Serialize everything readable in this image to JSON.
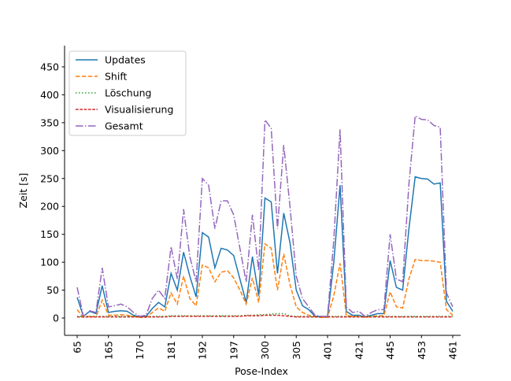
{
  "chart_data": {
    "type": "line",
    "x_label": "Pose-Index",
    "y_label": "Zeit [s]",
    "categories": [
      "65",
      null,
      null,
      null,
      null,
      "165",
      null,
      null,
      null,
      null,
      "170",
      null,
      null,
      null,
      null,
      "181",
      null,
      null,
      null,
      null,
      "192",
      null,
      null,
      null,
      null,
      "197",
      null,
      null,
      null,
      null,
      "300",
      null,
      null,
      null,
      null,
      "305",
      null,
      null,
      null,
      null,
      "401",
      null,
      null,
      null,
      null,
      "421",
      null,
      null,
      null,
      null,
      "445",
      null,
      null,
      null,
      null,
      "453",
      null,
      null,
      null,
      null,
      "461"
    ],
    "ylim": [
      -31,
      488
    ],
    "yticks": [
      0,
      50,
      100,
      150,
      200,
      250,
      300,
      350,
      400,
      450
    ],
    "legend": "upper left",
    "series": [
      {
        "name": "Updates",
        "color": "#1f77b4",
        "style": "solid",
        "values": [
          37,
          3,
          12,
          8,
          58,
          10,
          12,
          13,
          12,
          5,
          2,
          3,
          17,
          28,
          20,
          80,
          50,
          118,
          75,
          38,
          153,
          145,
          90,
          125,
          122,
          112,
          70,
          28,
          110,
          40,
          215,
          208,
          80,
          188,
          135,
          50,
          22,
          15,
          3,
          2,
          2,
          100,
          238,
          12,
          5,
          5,
          2,
          5,
          8,
          8,
          103,
          55,
          50,
          160,
          253,
          250,
          249,
          240,
          242,
          30,
          12
        ]
      },
      {
        "name": "Shift",
        "color": "#ff7f0e",
        "style": "dashed",
        "values": [
          15,
          1,
          3,
          2,
          32,
          5,
          5,
          6,
          5,
          3,
          1,
          1,
          10,
          18,
          12,
          45,
          25,
          75,
          35,
          22,
          95,
          90,
          65,
          82,
          85,
          72,
          50,
          25,
          72,
          28,
          133,
          125,
          50,
          115,
          60,
          20,
          10,
          5,
          2,
          1,
          1,
          40,
          98,
          5,
          3,
          3,
          1,
          3,
          4,
          4,
          47,
          20,
          18,
          70,
          105,
          103,
          103,
          102,
          100,
          15,
          5
        ]
      },
      {
        "name": "Löschung",
        "color": "#2ca02c",
        "style": "dotted",
        "values": [
          3,
          3,
          3,
          3,
          3,
          3,
          3,
          3,
          3,
          3,
          3,
          3,
          3,
          3,
          3,
          4,
          4,
          4,
          4,
          4,
          4,
          4,
          4,
          4,
          4,
          4,
          4,
          5,
          5,
          6,
          6,
          7,
          8,
          8,
          4,
          3,
          3,
          3,
          3,
          3,
          3,
          3,
          3,
          3,
          3,
          3,
          3,
          3,
          3,
          3,
          3,
          3,
          3,
          3,
          3,
          3,
          3,
          3,
          3,
          3,
          3
        ]
      },
      {
        "name": "Visualisierung",
        "color": "#d62728",
        "style": "dashdot2",
        "values": [
          2,
          2,
          2,
          2,
          2,
          2,
          2,
          2,
          2,
          2,
          2,
          2,
          2,
          2,
          2,
          3,
          3,
          3,
          3,
          3,
          3,
          3,
          3,
          3,
          3,
          3,
          3,
          4,
          4,
          4,
          5,
          5,
          5,
          4,
          3,
          2,
          2,
          2,
          2,
          2,
          2,
          2,
          2,
          2,
          2,
          2,
          2,
          2,
          2,
          2,
          2,
          2,
          2,
          2,
          2,
          2,
          2,
          2,
          2,
          2,
          2
        ]
      },
      {
        "name": "Gesamt",
        "color": "#9467bd",
        "style": "dashdot",
        "values": [
          55,
          3,
          13,
          10,
          90,
          20,
          22,
          25,
          20,
          10,
          3,
          5,
          35,
          50,
          35,
          128,
          70,
          195,
          110,
          65,
          250,
          238,
          160,
          210,
          210,
          185,
          125,
          65,
          185,
          85,
          355,
          340,
          160,
          310,
          200,
          75,
          35,
          20,
          5,
          3,
          3,
          140,
          338,
          20,
          10,
          12,
          3,
          10,
          15,
          15,
          150,
          70,
          65,
          240,
          362,
          356,
          355,
          345,
          342,
          45,
          20
        ]
      }
    ]
  }
}
